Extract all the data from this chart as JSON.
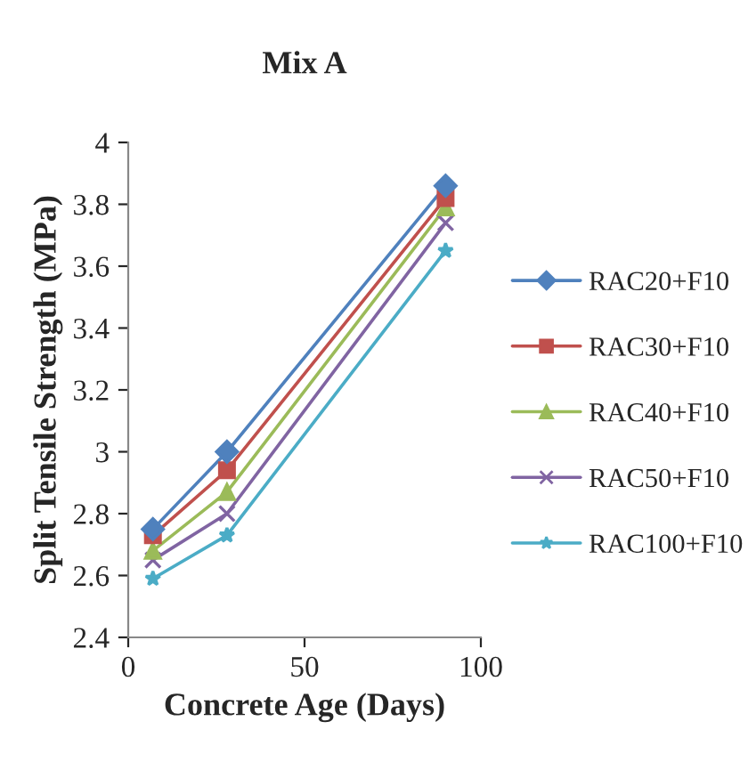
{
  "chart_data": {
    "type": "line",
    "title": "Mix A",
    "xlabel": "Concrete Age (Days)",
    "ylabel": "Split Tensile Strength (MPa)",
    "x": [
      7,
      28,
      90
    ],
    "series": [
      {
        "name": "RAC20+F10",
        "color": "#4f81bd",
        "marker": "diamond",
        "values": [
          2.75,
          3.0,
          3.86
        ]
      },
      {
        "name": "RAC30+F10",
        "color": "#c0504d",
        "marker": "square",
        "values": [
          2.73,
          2.94,
          3.82
        ]
      },
      {
        "name": "RAC40+F10",
        "color": "#9bbb59",
        "marker": "triangle",
        "values": [
          2.68,
          2.87,
          3.79
        ]
      },
      {
        "name": "RAC50+F10",
        "color": "#8064a2",
        "marker": "cross",
        "values": [
          2.65,
          2.8,
          3.74
        ]
      },
      {
        "name": "RAC100+F10",
        "color": "#4bacc6",
        "marker": "star",
        "values": [
          2.59,
          2.73,
          3.65
        ]
      }
    ],
    "xlim": [
      0,
      100
    ],
    "xticks": [
      0,
      50,
      100
    ],
    "ylim": [
      2.4,
      4
    ],
    "yticks": [
      2.4,
      2.6,
      2.8,
      3,
      3.2,
      3.4,
      3.6,
      3.8,
      4
    ],
    "grid": false,
    "legend": "right",
    "line_style": "solid"
  }
}
